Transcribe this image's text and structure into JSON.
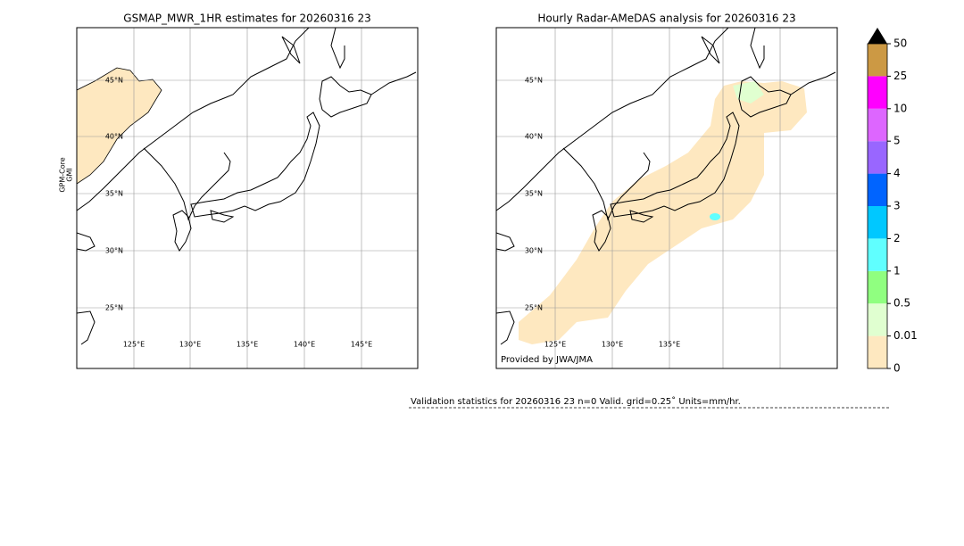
{
  "panels": [
    {
      "title": "GSMAP_MWR_1HR estimates for 20260316 23",
      "lat_labels": [
        "45°N",
        "40°N",
        "35°N",
        "30°N",
        "25°N"
      ],
      "lon_labels": [
        "125°E",
        "130°E",
        "135°E",
        "140°E",
        "145°E"
      ],
      "side_label": [
        "GPM-Core",
        "GMI"
      ]
    },
    {
      "title": "Hourly Radar-AMeDAS analysis for 20260316 23",
      "lat_labels": [
        "45°N",
        "40°N",
        "35°N",
        "30°N",
        "25°N"
      ],
      "lon_labels": [
        "125°E",
        "130°E",
        "135°E"
      ],
      "credit": "Provided by JWA/JMA"
    }
  ],
  "colorbar": {
    "labels": [
      "0",
      "0.01",
      "0.5",
      "1",
      "2",
      "3",
      "4",
      "5",
      "10",
      "25",
      "50"
    ],
    "colors": [
      "#fee8c0",
      "#e0ffd0",
      "#90ff80",
      "#60ffff",
      "#00c8ff",
      "#0064ff",
      "#9966ff",
      "#dd66ff",
      "#ff00ff",
      "#cc9944"
    ]
  },
  "validation": "Validation statistics for 20260316 23  n=0 Valid. grid=0.25˚ Units=mm/hr."
}
